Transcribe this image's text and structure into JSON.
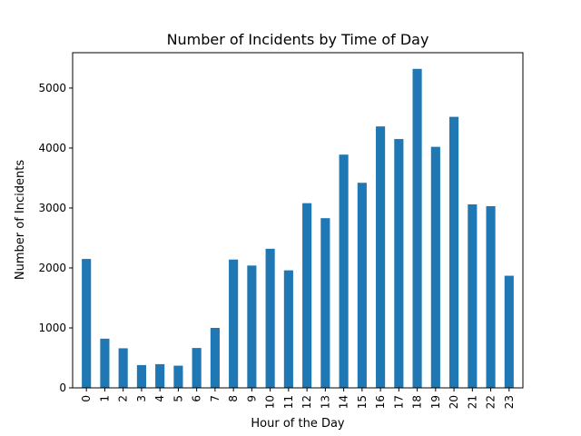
{
  "chart_data": {
    "type": "bar",
    "title": "Number of Incidents by Time of Day",
    "xlabel": "Hour of the Day",
    "ylabel": "Number of Incidents",
    "categories": [
      "0",
      "1",
      "2",
      "3",
      "4",
      "5",
      "6",
      "7",
      "8",
      "9",
      "10",
      "11",
      "12",
      "13",
      "14",
      "15",
      "16",
      "17",
      "18",
      "19",
      "20",
      "21",
      "22",
      "23"
    ],
    "values": [
      2150,
      820,
      660,
      380,
      395,
      370,
      665,
      1000,
      2140,
      2040,
      2320,
      1960,
      3080,
      2830,
      3890,
      3420,
      4360,
      4150,
      5320,
      4020,
      4520,
      3060,
      3030,
      1870
    ],
    "ylim": [
      0,
      5590
    ],
    "yticks": [
      0,
      1000,
      2000,
      3000,
      4000,
      5000
    ],
    "bar_color": "#1f77b4",
    "grid": false,
    "legend": false
  }
}
